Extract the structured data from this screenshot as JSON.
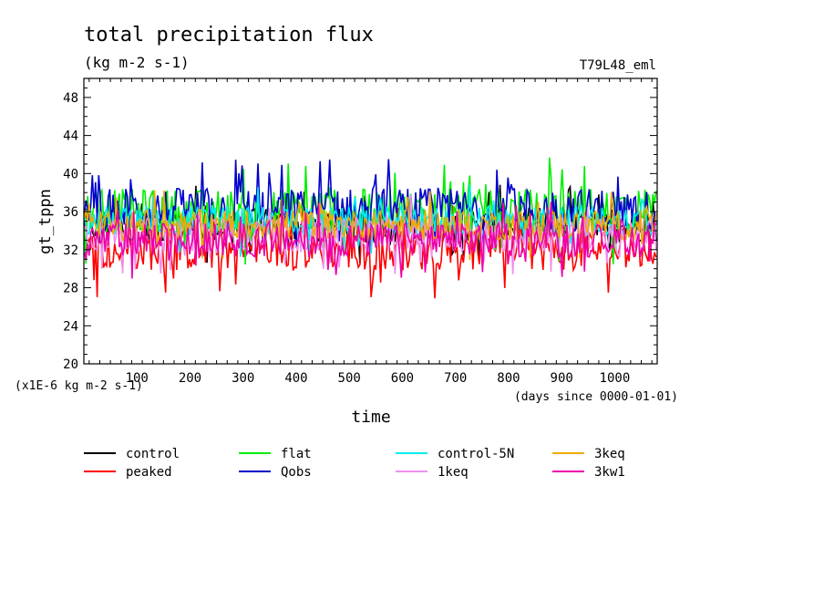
{
  "chart_data": {
    "type": "line",
    "title": "total precipitation flux",
    "subtitle": "(kg m-2 s-1)",
    "run_label": "T79L48_eml",
    "ylabel": "gt_tppn",
    "xlabel": "time",
    "y_scale_note": "(x1E-6 kg m-2 s-1)",
    "x_units_note": "(days since 0000-01-01)",
    "xlim": [
      0,
      1080
    ],
    "ylim": [
      20,
      50
    ],
    "x_ticks": [
      100,
      200,
      300,
      400,
      500,
      600,
      700,
      800,
      900,
      1000
    ],
    "y_ticks": [
      20,
      24,
      28,
      32,
      36,
      40,
      44,
      48
    ],
    "grid": false,
    "legend_placement": "bottom",
    "series": [
      {
        "name": "control",
        "color": "#000000",
        "mean": 34.5,
        "amp": 1.8,
        "values": []
      },
      {
        "name": "peaked",
        "color": "#ff0000",
        "mean": 32.0,
        "amp": 2.2,
        "values": []
      },
      {
        "name": "flat",
        "color": "#00ee00",
        "mean": 36.0,
        "amp": 2.4,
        "values": []
      },
      {
        "name": "Qobs",
        "color": "#0000cc",
        "mean": 36.2,
        "amp": 2.3,
        "values": []
      },
      {
        "name": "control-5N",
        "color": "#00eeee",
        "mean": 35.0,
        "amp": 1.6,
        "values": []
      },
      {
        "name": "1keq",
        "color": "#ee90ee",
        "mean": 33.6,
        "amp": 1.8,
        "values": []
      },
      {
        "name": "3keq",
        "color": "#eeaa00",
        "mean": 34.6,
        "amp": 1.6,
        "values": []
      },
      {
        "name": "3kw1",
        "color": "#ee00aa",
        "mean": 33.0,
        "amp": 1.8,
        "values": []
      }
    ],
    "x_step_days": 3
  }
}
